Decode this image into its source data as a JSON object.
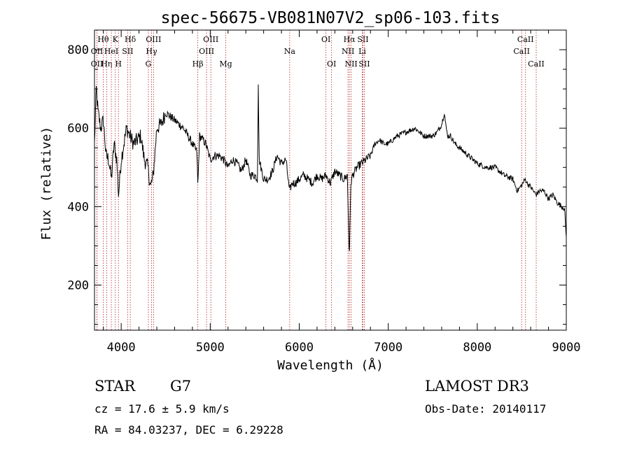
{
  "chart_data": {
    "type": "line",
    "title": "spec-56675-VB081N07V2_sp06-103.fits",
    "xlabel": "Wavelength (Å)",
    "ylabel": "Flux (relative)",
    "xlim": [
      3700,
      9000
    ],
    "ylim": [
      85,
      850
    ],
    "xticks": [
      4000,
      5000,
      6000,
      7000,
      8000,
      9000
    ],
    "yticks": [
      200,
      400,
      600,
      800
    ],
    "spectrum_anchors": {
      "x": [
        3700,
        3720,
        3740,
        3770,
        3800,
        3830,
        3860,
        3890,
        3920,
        3950,
        3970,
        4000,
        4030,
        4060,
        4100,
        4140,
        4180,
        4220,
        4260,
        4300,
        4330,
        4360,
        4400,
        4450,
        4500,
        4550,
        4600,
        4700,
        4800,
        4850,
        4861,
        4880,
        4920,
        4950,
        5000,
        5050,
        5100,
        5150,
        5200,
        5250,
        5300,
        5350,
        5400,
        5450,
        5500,
        5530,
        5540,
        5550,
        5600,
        5650,
        5700,
        5750,
        5800,
        5850,
        5890,
        5920,
        5960,
        6000,
        6050,
        6100,
        6150,
        6200,
        6250,
        6300,
        6350,
        6400,
        6450,
        6500,
        6540,
        6563,
        6580,
        6600,
        6650,
        6700,
        6750,
        6800,
        6850,
        6900,
        6950,
        7000,
        7050,
        7100,
        7200,
        7300,
        7400,
        7500,
        7550,
        7600,
        7630,
        7650,
        7670,
        7700,
        7750,
        7800,
        7850,
        7900,
        8000,
        8100,
        8200,
        8300,
        8400,
        8450,
        8500,
        8540,
        8560,
        8600,
        8660,
        8700,
        8750,
        8800,
        8850,
        8900,
        8950,
        8980,
        9000
      ],
      "y": [
        560,
        700,
        640,
        600,
        620,
        530,
        520,
        470,
        560,
        520,
        430,
        520,
        560,
        600,
        580,
        560,
        570,
        580,
        520,
        500,
        450,
        480,
        600,
        610,
        640,
        630,
        620,
        600,
        560,
        540,
        450,
        580,
        570,
        560,
        520,
        530,
        530,
        520,
        500,
        520,
        510,
        490,
        520,
        480,
        480,
        470,
        720,
        520,
        470,
        470,
        490,
        530,
        510,
        520,
        440,
        460,
        460,
        470,
        480,
        470,
        460,
        480,
        470,
        480,
        460,
        490,
        480,
        470,
        480,
        270,
        460,
        480,
        500,
        510,
        520,
        530,
        560,
        570,
        560,
        560,
        570,
        580,
        590,
        600,
        580,
        580,
        590,
        610,
        640,
        600,
        580,
        580,
        560,
        550,
        540,
        530,
        510,
        500,
        500,
        480,
        470,
        440,
        455,
        470,
        460,
        450,
        430,
        440,
        440,
        420,
        430,
        410,
        400,
        395,
        320
      ]
    },
    "spectral_lines": [
      {
        "name": "OII",
        "wave": 3727,
        "row": 1
      },
      {
        "name": "OII",
        "wave": 3727,
        "row": 2
      },
      {
        "name": "Hθ",
        "wave": 3798,
        "row": 0
      },
      {
        "name": "Hη",
        "wave": 3836,
        "row": 2
      },
      {
        "name": "HeI",
        "wave": 3889,
        "row": 1
      },
      {
        "name": "K",
        "wave": 3934,
        "row": 0
      },
      {
        "name": "H",
        "wave": 3969,
        "row": 2
      },
      {
        "name": "SII",
        "wave": 4072,
        "row": 1
      },
      {
        "name": "Hδ",
        "wave": 4102,
        "row": 0
      },
      {
        "name": "G",
        "wave": 4305,
        "row": 2
      },
      {
        "name": "Hγ",
        "wave": 4341,
        "row": 1
      },
      {
        "name": "OIII",
        "wave": 4363,
        "row": 0
      },
      {
        "name": "Hβ",
        "wave": 4861,
        "row": 2
      },
      {
        "name": "OIII",
        "wave": 4959,
        "row": 1
      },
      {
        "name": "OIII",
        "wave": 5007,
        "row": 0
      },
      {
        "name": "Mg",
        "wave": 5175,
        "row": 2
      },
      {
        "name": "Na",
        "wave": 5893,
        "row": 1
      },
      {
        "name": "OI",
        "wave": 6300,
        "row": 0
      },
      {
        "name": "OI",
        "wave": 6363,
        "row": 2
      },
      {
        "name": "NII",
        "wave": 6548,
        "row": 1
      },
      {
        "name": "Hα",
        "wave": 6563,
        "row": 0
      },
      {
        "name": "NII",
        "wave": 6583,
        "row": 2
      },
      {
        "name": "SII",
        "wave": 6716,
        "row": 0
      },
      {
        "name": "SII",
        "wave": 6731,
        "row": 2
      },
      {
        "name": "Li",
        "wave": 6708,
        "row": 1
      },
      {
        "name": "CaII",
        "wave": 8498,
        "row": 1
      },
      {
        "name": "CaII",
        "wave": 8542,
        "row": 0
      },
      {
        "name": "CaII",
        "wave": 8662,
        "row": 2
      }
    ],
    "line_color": "#b22222"
  },
  "info": {
    "object_class": "STAR",
    "subclass": "G7",
    "survey": "LAMOST DR3",
    "redshift": "cz = 17.6 ± 5.9 km/s",
    "obs_date": "Obs-Date: 20140117",
    "coords": "RA =  84.03237, DEC =   6.29228"
  }
}
